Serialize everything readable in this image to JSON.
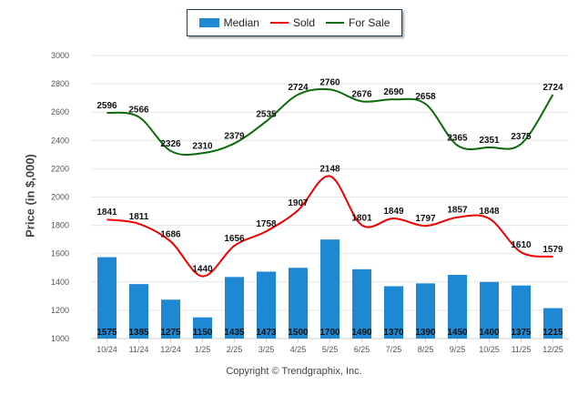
{
  "chart_data": {
    "type": "bar",
    "title": "",
    "xlabel": "",
    "ylabel": "Price (in $,000)",
    "ylim": [
      1000,
      3000
    ],
    "yticks": [
      1000,
      1200,
      1400,
      1600,
      1800,
      2000,
      2200,
      2400,
      2600,
      2800,
      3000
    ],
    "grid": true,
    "legend_position": "top-center",
    "categories": [
      "10/24",
      "11/24",
      "12/24",
      "1/25",
      "2/25",
      "3/25",
      "4/25",
      "5/25",
      "6/25",
      "7/25",
      "8/25",
      "9/25",
      "10/25",
      "11/25",
      "12/25"
    ],
    "series": [
      {
        "name": "Median",
        "type": "bar",
        "color": "#1f88d2",
        "values": [
          1575,
          1385,
          1275,
          1150,
          1435,
          1473,
          1500,
          1700,
          1490,
          1370,
          1390,
          1450,
          1400,
          1375,
          1215
        ]
      },
      {
        "name": "Sold",
        "type": "line",
        "color": "#ee0000",
        "values": [
          1841,
          1811,
          1686,
          1440,
          1656,
          1758,
          1907,
          2148,
          1801,
          1849,
          1797,
          1857,
          1848,
          1610,
          1579
        ]
      },
      {
        "name": "For Sale",
        "type": "line",
        "color": "#0b6b0b",
        "values": [
          2596,
          2566,
          2326,
          2310,
          2379,
          2535,
          2724,
          2760,
          2676,
          2690,
          2658,
          2365,
          2351,
          2375,
          2724
        ]
      }
    ]
  },
  "legend": {
    "items": [
      {
        "label": "Median",
        "color": "#1f88d2"
      },
      {
        "label": "Sold",
        "color": "#ee0000"
      },
      {
        "label": "For Sale",
        "color": "#0b6b0b"
      }
    ]
  },
  "footer": {
    "copyright": "Copyright © Trendgraphix, Inc."
  }
}
